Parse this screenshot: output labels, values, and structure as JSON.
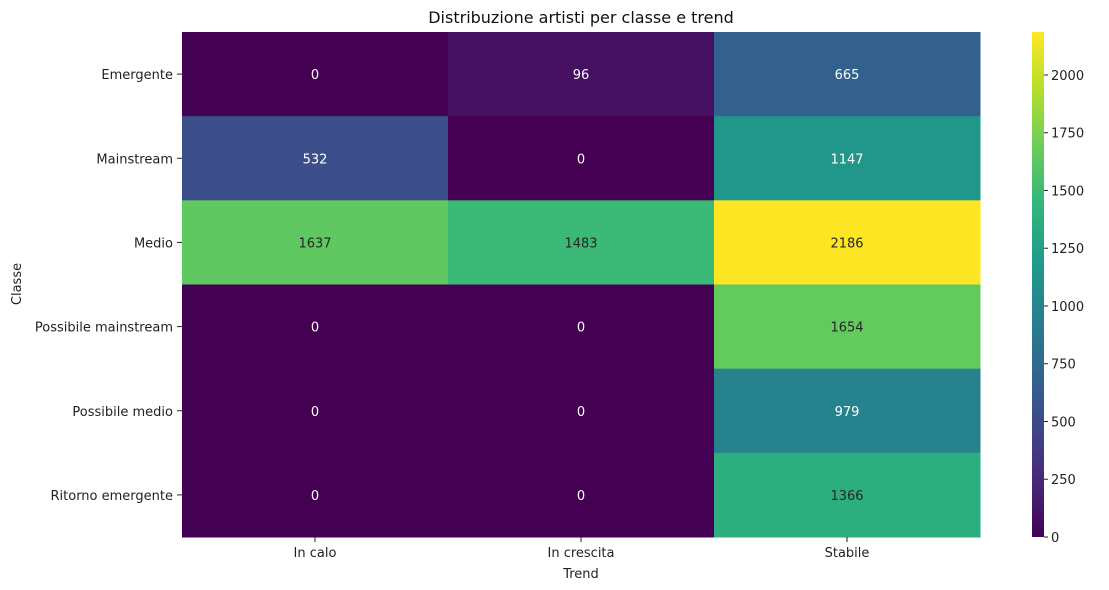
{
  "chart_data": {
    "type": "heatmap",
    "title": "Distribuzione artisti per classe e trend",
    "xlabel": "Trend",
    "ylabel": "Classe",
    "x_categories": [
      "In calo",
      "In crescita",
      "Stabile"
    ],
    "y_categories": [
      "Emergente",
      "Mainstream",
      "Medio",
      "Possibile mainstream",
      "Possibile medio",
      "Ritorno emergente"
    ],
    "values": [
      [
        0,
        96,
        665
      ],
      [
        532,
        0,
        1147
      ],
      [
        1637,
        1483,
        2186
      ],
      [
        0,
        0,
        1654
      ],
      [
        0,
        0,
        979
      ],
      [
        0,
        0,
        1366
      ]
    ],
    "colormap": "viridis",
    "colorbar": {
      "min": 0,
      "max": 2186,
      "ticks": [
        0,
        250,
        500,
        750,
        1000,
        1250,
        1500,
        1750,
        2000
      ]
    }
  }
}
